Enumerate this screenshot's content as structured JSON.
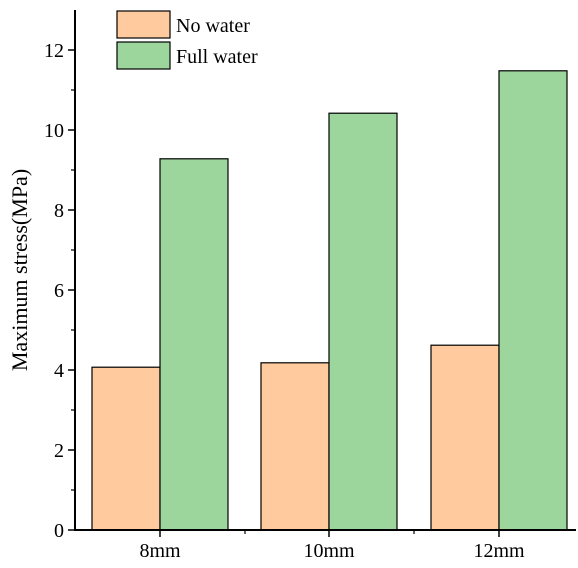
{
  "chart_data": {
    "type": "bar",
    "title": "",
    "xlabel": "",
    "ylabel": "Maximum stress(MPa)",
    "categories": [
      "8mm",
      "10mm",
      "12mm"
    ],
    "series": [
      {
        "name": "No water",
        "values": [
          4.07,
          4.18,
          4.62
        ],
        "color": "#FFCB9E"
      },
      {
        "name": "Full water",
        "values": [
          9.28,
          10.42,
          11.48
        ],
        "color": "#9DD69D"
      }
    ],
    "ylim": [
      0,
      13
    ],
    "yticks": [
      0,
      2,
      4,
      6,
      8,
      10,
      12
    ],
    "ytick_labels": [
      "0",
      "2",
      "4",
      "6",
      "8",
      "10",
      "12"
    ],
    "minor_yticks": true,
    "grid": false,
    "legend_position": "top-left"
  }
}
